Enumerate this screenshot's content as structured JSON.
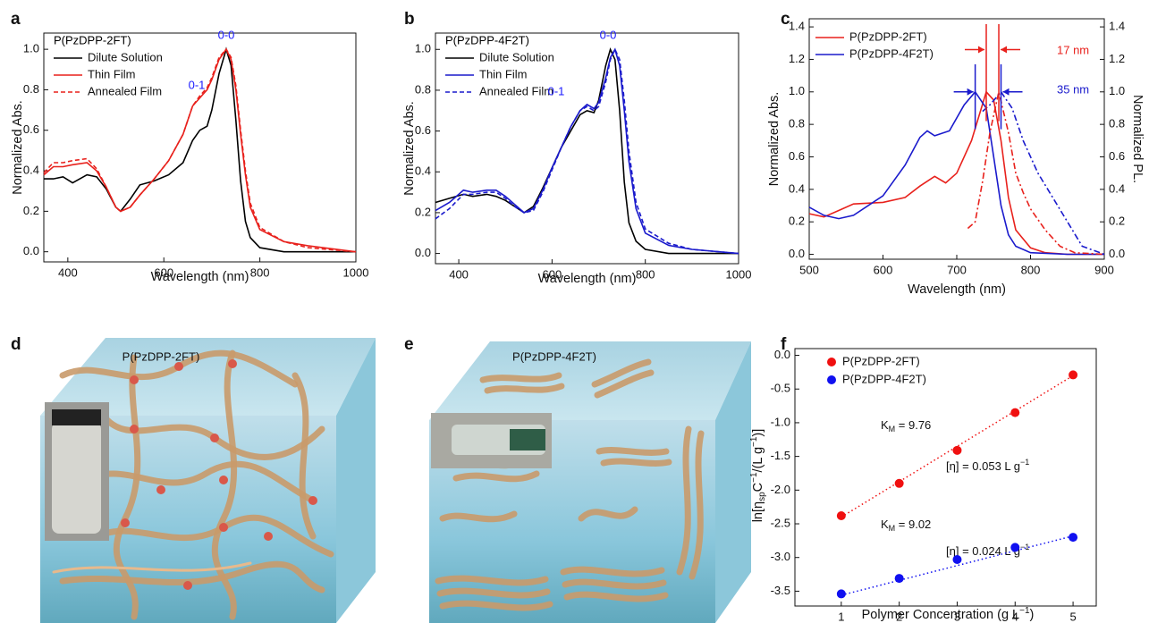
{
  "chart_data": [
    {
      "type": "line",
      "panel": "a",
      "xlabel": "Wavelength (nm)",
      "ylabel": "Normalized Abs.",
      "annotations": [
        {
          "text": "P(PzDPP-2FT)",
          "color": "#000000"
        },
        {
          "text": "0-0",
          "color": "#1a1aff"
        },
        {
          "text": "0-1",
          "color": "#1a1aff"
        }
      ],
      "x": [
        350,
        370,
        390,
        410,
        440,
        460,
        480,
        500,
        510,
        530,
        550,
        580,
        610,
        640,
        660,
        675,
        690,
        700,
        715,
        730,
        740,
        750,
        760,
        770,
        780,
        800,
        850,
        900,
        1000
      ],
      "series": [
        {
          "name": "Dilute Solution",
          "color": "#000000",
          "dash": "solid",
          "values": [
            0.36,
            0.36,
            0.37,
            0.34,
            0.38,
            0.37,
            0.31,
            0.22,
            0.2,
            0.26,
            0.33,
            0.35,
            0.38,
            0.44,
            0.55,
            0.6,
            0.62,
            0.7,
            0.88,
            1.0,
            0.92,
            0.65,
            0.35,
            0.15,
            0.07,
            0.02,
            0.0,
            0.0,
            0.0
          ]
        },
        {
          "name": "Thin Film",
          "color": "#e8211c",
          "dash": "solid",
          "values": [
            0.38,
            0.42,
            0.42,
            0.43,
            0.44,
            0.4,
            0.32,
            0.22,
            0.2,
            0.22,
            0.28,
            0.36,
            0.45,
            0.58,
            0.72,
            0.76,
            0.8,
            0.85,
            0.95,
            1.0,
            0.95,
            0.8,
            0.58,
            0.38,
            0.22,
            0.11,
            0.05,
            0.03,
            0.0
          ]
        },
        {
          "name": "Annealed Film",
          "color": "#e8211c",
          "dash": "dashed",
          "values": [
            0.39,
            0.44,
            0.44,
            0.45,
            0.46,
            0.41,
            0.32,
            0.22,
            0.2,
            0.22,
            0.28,
            0.36,
            0.45,
            0.58,
            0.72,
            0.77,
            0.81,
            0.86,
            0.96,
            1.0,
            0.96,
            0.82,
            0.6,
            0.4,
            0.24,
            0.12,
            0.05,
            0.02,
            0.0
          ]
        }
      ],
      "xlim": [
        350,
        1000
      ],
      "xticks": [
        400,
        600,
        800,
        1000
      ],
      "ylim": [
        -0.05,
        1.08
      ],
      "yticks": [
        {
          "value": 0,
          "label": "0.0"
        },
        0.2,
        0.4,
        0.6,
        0.8,
        {
          "value": 1,
          "label": "1.0"
        }
      ]
    },
    {
      "type": "line",
      "panel": "b",
      "xlabel": "Wavelength (nm)",
      "ylabel": "Normalized Abs.",
      "annotations": [
        {
          "text": "P(PzDPP-4F2T)",
          "color": "#000000"
        },
        {
          "text": "0-0",
          "color": "#1a1aff"
        },
        {
          "text": "0-1",
          "color": "#1a1aff"
        }
      ],
      "x": [
        350,
        380,
        410,
        430,
        460,
        480,
        500,
        520,
        540,
        560,
        580,
        600,
        620,
        640,
        660,
        675,
        690,
        700,
        715,
        725,
        735,
        745,
        755,
        765,
        780,
        800,
        850,
        900,
        1000
      ],
      "series": [
        {
          "name": "Dilute Solution",
          "color": "#000000",
          "dash": "solid",
          "values": [
            0.25,
            0.27,
            0.29,
            0.28,
            0.29,
            0.28,
            0.26,
            0.23,
            0.2,
            0.23,
            0.32,
            0.42,
            0.52,
            0.6,
            0.68,
            0.7,
            0.69,
            0.75,
            0.92,
            1.0,
            0.95,
            0.7,
            0.35,
            0.15,
            0.06,
            0.02,
            0.0,
            0.0,
            0.0
          ]
        },
        {
          "name": "Thin Film",
          "color": "#1a1acc",
          "dash": "solid",
          "values": [
            0.21,
            0.25,
            0.31,
            0.3,
            0.31,
            0.31,
            0.28,
            0.24,
            0.2,
            0.22,
            0.31,
            0.42,
            0.52,
            0.62,
            0.7,
            0.73,
            0.71,
            0.74,
            0.86,
            0.96,
            1.0,
            0.92,
            0.7,
            0.45,
            0.22,
            0.1,
            0.04,
            0.02,
            0.0
          ]
        },
        {
          "name": "Annealed Film",
          "color": "#1a1acc",
          "dash": "dashed",
          "values": [
            0.17,
            0.22,
            0.29,
            0.29,
            0.3,
            0.3,
            0.27,
            0.23,
            0.2,
            0.21,
            0.3,
            0.41,
            0.52,
            0.62,
            0.7,
            0.72,
            0.7,
            0.72,
            0.84,
            0.95,
            1.0,
            0.95,
            0.75,
            0.5,
            0.25,
            0.12,
            0.05,
            0.02,
            0.0
          ]
        }
      ],
      "xlim": [
        350,
        1000
      ],
      "xticks": [
        400,
        600,
        800,
        1000
      ],
      "ylim": [
        -0.05,
        1.08
      ],
      "yticks": [
        {
          "value": 0,
          "label": "0.0"
        },
        0.2,
        0.4,
        0.6,
        0.8,
        {
          "value": 1,
          "label": "1.0"
        }
      ]
    },
    {
      "type": "line",
      "panel": "c",
      "xlabel": "Wavelength (nm)",
      "ylabel": "Normalized Abs.",
      "y2label": "Normalized PL.",
      "annotations": [
        {
          "text": "17 nm",
          "color": "#e8211c"
        },
        {
          "text": "35 nm",
          "color": "#1a1acc"
        }
      ],
      "series": [
        {
          "name": "P(PzDPP-2FT)",
          "color": "#e8211c",
          "dash": "solid",
          "x": [
            500,
            520,
            540,
            560,
            600,
            630,
            650,
            670,
            685,
            700,
            720,
            740,
            750,
            760,
            770,
            780,
            800,
            820,
            850,
            900
          ],
          "values": [
            0.25,
            0.23,
            0.27,
            0.31,
            0.32,
            0.35,
            0.42,
            0.48,
            0.44,
            0.5,
            0.7,
            1.0,
            0.95,
            0.7,
            0.35,
            0.15,
            0.04,
            0.01,
            0.0,
            0.0
          ]
        },
        {
          "name": "P(PzDPP-4F2T)",
          "color": "#1a1acc",
          "dash": "solid",
          "x": [
            500,
            520,
            540,
            560,
            600,
            630,
            650,
            660,
            670,
            690,
            710,
            725,
            740,
            750,
            760,
            770,
            780,
            800,
            850,
            900
          ],
          "values": [
            0.29,
            0.24,
            0.22,
            0.24,
            0.36,
            0.55,
            0.72,
            0.76,
            0.73,
            0.76,
            0.92,
            1.0,
            0.9,
            0.6,
            0.3,
            0.12,
            0.05,
            0.01,
            0.0,
            0.0
          ]
        },
        {
          "color": "#e8211c",
          "dash": "dashdot",
          "axis": "y2",
          "x": [
            715,
            725,
            735,
            745,
            757,
            770,
            780,
            790,
            800,
            820,
            840,
            860,
            900
          ],
          "values": [
            0.16,
            0.2,
            0.45,
            0.75,
            1.0,
            0.75,
            0.5,
            0.38,
            0.28,
            0.15,
            0.05,
            0.01,
            0.0
          ]
        },
        {
          "color": "#1a1acc",
          "dash": "dashdot",
          "axis": "y2",
          "x": [
            735,
            745,
            760,
            775,
            790,
            810,
            830,
            850,
            870,
            900
          ],
          "values": [
            0.88,
            0.92,
            1.0,
            0.9,
            0.7,
            0.5,
            0.35,
            0.2,
            0.05,
            0.0
          ]
        }
      ],
      "shift_markers": [
        {
          "color": "#e8211c",
          "x": [
            740,
            757
          ]
        },
        {
          "color": "#1a1acc",
          "x": [
            725,
            760
          ]
        }
      ],
      "xlim": [
        500,
        900
      ],
      "xticks": [
        500,
        600,
        700,
        800,
        900
      ],
      "ylim": [
        -0.03,
        1.45
      ],
      "yticks": [
        {
          "value": 0,
          "label": "0.0"
        },
        0.2,
        0.4,
        0.6,
        0.8,
        {
          "value": 1,
          "label": "1.0"
        },
        1.2,
        1.4
      ],
      "y2lim": [
        -0.03,
        1.45
      ],
      "y2ticks": [
        {
          "value": 0,
          "label": "0.0"
        },
        0.2,
        0.4,
        0.6,
        0.8,
        {
          "value": 1,
          "label": "1.0"
        },
        1.2,
        1.4
      ]
    },
    {
      "type": "illustration",
      "panel": "d",
      "label": "P(PzDPP-2FT)"
    },
    {
      "type": "illustration",
      "panel": "e",
      "label": "P(PzDPP-4F2T)"
    },
    {
      "type": "scatter",
      "panel": "f",
      "xlabel_parts": [
        "Polymer Concentration (g L",
        "−1",
        ")"
      ],
      "ylabel_parts": [
        "ln[η",
        "sp",
        "C",
        "−1",
        "/(L g",
        "−1",
        ")]"
      ],
      "annotation_parts": [
        [
          "K",
          "M",
          " = 9.76"
        ],
        [
          "[η] = 0.053 L g",
          "−1"
        ],
        [
          "K",
          "M",
          " = 9.02"
        ],
        [
          "[η] = 0.024 L g",
          "−1"
        ]
      ],
      "x": [
        1,
        2,
        3,
        4,
        5
      ],
      "series": [
        {
          "name": "P(PzDPP-2FT)",
          "color": "#f01010",
          "values": [
            -2.38,
            -1.9,
            -1.41,
            -0.85,
            -0.29
          ],
          "fit_x": [
            1,
            5
          ],
          "fit": [
            -2.4,
            -0.3
          ]
        },
        {
          "name": "P(PzDPP-4F2T)",
          "color": "#1010f0",
          "values": [
            -3.54,
            -3.31,
            -3.03,
            -2.85,
            -2.7
          ],
          "fit_x": [
            1,
            5
          ],
          "fit": [
            -3.56,
            -2.68
          ]
        }
      ],
      "xlim": [
        0.2,
        5.4
      ],
      "xticks": [
        1,
        2,
        3,
        4,
        5
      ],
      "ylim": [
        -3.72,
        0.1
      ],
      "yticks": [
        -3.5,
        {
          "value": -3,
          "label": "-3.0"
        },
        -2.5,
        {
          "value": -2,
          "label": "-2.0"
        },
        -1.5,
        {
          "value": -1,
          "label": "-1.0"
        },
        -0.5,
        {
          "value": 0,
          "label": "0.0"
        }
      ]
    }
  ]
}
